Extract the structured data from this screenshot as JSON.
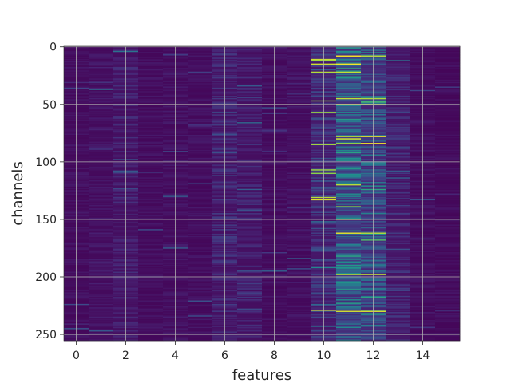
{
  "chart_data": {
    "type": "heatmap",
    "title": "",
    "xlabel": "features",
    "ylabel": "channels",
    "x_range": [
      -0.5,
      15.5
    ],
    "y_range": [
      255.5,
      -0.5
    ],
    "x_ticks": [
      0,
      2,
      4,
      6,
      8,
      10,
      12,
      14
    ],
    "y_ticks": [
      0,
      50,
      100,
      150,
      200,
      250
    ],
    "x_tick_labels": [
      "0",
      "2",
      "4",
      "6",
      "8",
      "10",
      "12",
      "14"
    ],
    "y_tick_labels": [
      "0",
      "50",
      "100",
      "150",
      "200",
      "250"
    ],
    "n_columns": 16,
    "n_rows": 256,
    "colormap": "viridis",
    "grid": true,
    "grid_color": "#b0b0b0",
    "background_color": "#433a84",
    "column_mean_levels": [
      0.06,
      0.08,
      0.12,
      0.06,
      0.07,
      0.06,
      0.14,
      0.12,
      0.06,
      0.07,
      0.2,
      0.42,
      0.34,
      0.15,
      0.06,
      0.05
    ],
    "highlights": [
      {
        "feature": 10,
        "channels": [
          11,
          12,
          15,
          22,
          47,
          57,
          85,
          107,
          110,
          131,
          133,
          229
        ]
      },
      {
        "feature": 11,
        "channels": [
          8,
          15,
          22,
          45,
          50,
          78,
          84,
          162,
          198,
          230
        ]
      },
      {
        "feature": 12,
        "channels": [
          8,
          45,
          50,
          78,
          84,
          162,
          198,
          230
        ]
      }
    ]
  }
}
